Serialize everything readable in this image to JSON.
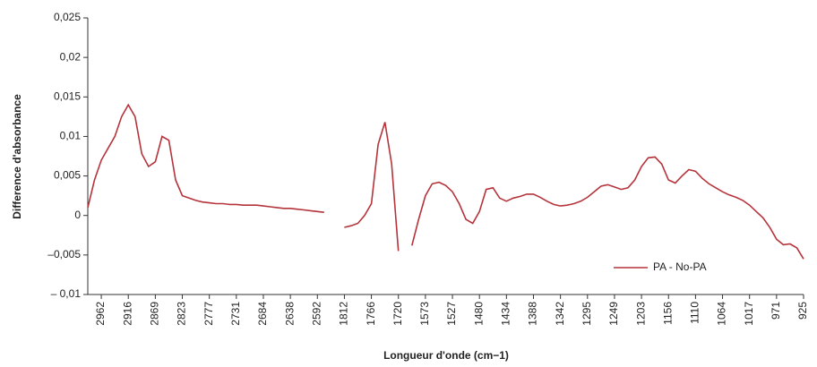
{
  "chart_data": {
    "type": "line",
    "x_label": "Longueur d'onde (cm−1)",
    "y_label": "Difference d'absorbance",
    "categories": [
      null,
      null,
      "2962",
      null,
      null,
      null,
      "2916",
      null,
      null,
      null,
      "2869",
      null,
      null,
      null,
      "2823",
      null,
      null,
      null,
      "2777",
      null,
      null,
      null,
      "2731",
      null,
      null,
      null,
      "2684",
      null,
      null,
      null,
      "2638",
      null,
      null,
      null,
      "2592",
      null,
      null,
      null,
      "1812",
      null,
      null,
      null,
      "1766",
      null,
      null,
      null,
      "1720",
      null,
      null,
      null,
      "1573",
      null,
      null,
      null,
      "1527",
      null,
      null,
      null,
      "1480",
      null,
      null,
      null,
      "1434",
      null,
      null,
      null,
      "1388",
      null,
      null,
      null,
      "1342",
      null,
      null,
      null,
      "1295",
      null,
      null,
      null,
      "1249",
      null,
      null,
      null,
      "1203",
      null,
      null,
      null,
      "1156",
      null,
      null,
      null,
      "1110",
      null,
      null,
      null,
      "1064",
      null,
      null,
      null,
      "1017",
      null,
      null,
      null,
      "971",
      null,
      null,
      null,
      "925"
    ],
    "series": [
      {
        "name": "PA - No-PA",
        "color": "#b5333b",
        "values": [
          0.001,
          0.0045,
          0.007,
          0.0085,
          0.01,
          0.0125,
          0.014,
          0.0125,
          0.0078,
          0.0062,
          0.0068,
          0.01,
          0.0095,
          0.0045,
          0.0025,
          0.0022,
          0.0019,
          0.0017,
          0.0016,
          0.0015,
          0.0015,
          0.0014,
          0.0014,
          0.0013,
          0.0013,
          0.0013,
          0.0012,
          0.0011,
          0.001,
          0.0009,
          0.0009,
          0.0008,
          0.0007,
          0.0006,
          0.0005,
          0.0004,
          null,
          null,
          -0.0015,
          -0.0013,
          -0.001,
          0.0,
          0.0015,
          0.009,
          0.0118,
          0.0065,
          -0.0045,
          null,
          -0.0038,
          -0.0005,
          0.0025,
          0.004,
          0.0042,
          0.0038,
          0.003,
          0.0015,
          -0.0005,
          -0.001,
          0.0005,
          0.0033,
          0.0035,
          0.0022,
          0.0018,
          0.0022,
          0.0024,
          0.0027,
          0.0027,
          0.0023,
          0.0018,
          0.0014,
          0.0012,
          0.0013,
          0.0015,
          0.0018,
          0.0023,
          0.003,
          0.0037,
          0.0039,
          0.0036,
          0.0033,
          0.0035,
          0.0045,
          0.0062,
          0.0073,
          0.0074,
          0.0065,
          0.0045,
          0.0041,
          0.005,
          0.0058,
          0.0056,
          0.0047,
          0.004,
          0.0035,
          0.003,
          0.0026,
          0.0023,
          0.0019,
          0.0013,
          0.0005,
          -0.0003,
          -0.0015,
          -0.003,
          -0.0037,
          -0.0036,
          -0.0041,
          -0.0055
        ]
      }
    ],
    "ylim": [
      -0.01,
      0.025
    ],
    "yticks": [
      {
        "value": -0.01,
        "label": "– 0,01"
      },
      {
        "value": -0.005,
        "label": "–0,005"
      },
      0,
      {
        "value": 0.005,
        "label": "0,005"
      },
      {
        "value": 0.01,
        "label": "0,01"
      },
      {
        "value": 0.015,
        "label": "0,015"
      },
      {
        "value": 0.02,
        "label": "0,02"
      },
      {
        "value": 0.025,
        "label": "0,025"
      }
    ],
    "legend": "lower right"
  }
}
